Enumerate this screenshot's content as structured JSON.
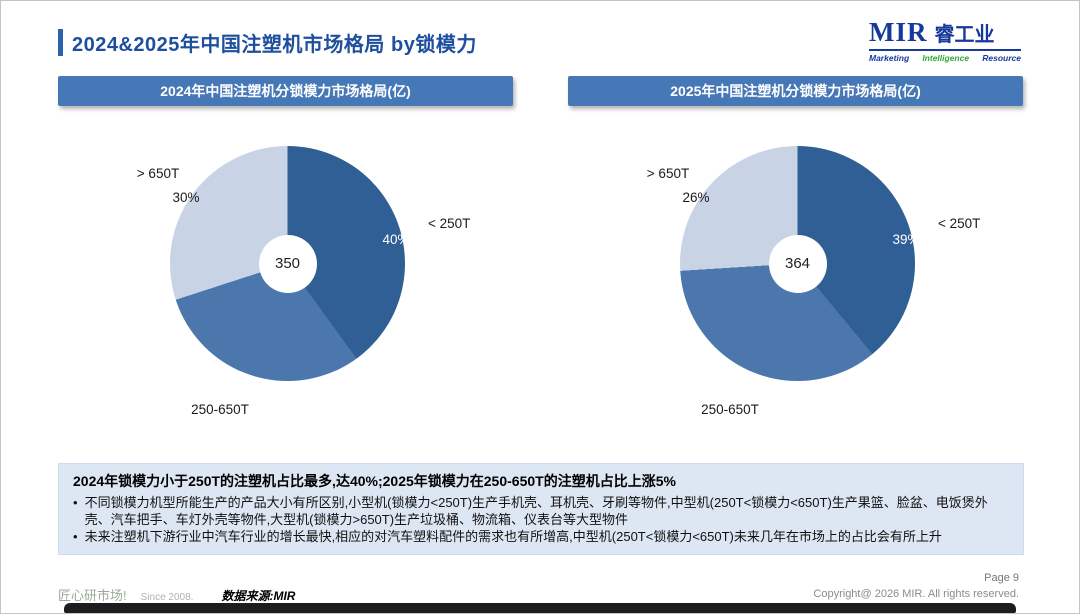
{
  "page": {
    "title": "2024&2025年中国注塑机市场格局 by锁模力",
    "page_number": "Page 9",
    "copyright": "Copyright@ 2026 MIR. All rights reserved.",
    "brand_text": "匠心研市场!",
    "since_text": "Since 2008.",
    "source_text": "数据来源:MIR"
  },
  "logo": {
    "name": "MIR",
    "name_cn": "睿工业",
    "tagline": [
      "Marketing",
      "Intelligence",
      "Resource"
    ]
  },
  "chart_data": [
    {
      "type": "pie",
      "donut": true,
      "title": "2024年中国注塑机分锁模力市场格局(亿)",
      "center_total": "350",
      "legend_position": "outside-labels",
      "slices": [
        {
          "label": "< 250T",
          "value": 40,
          "percent_label": "40%",
          "color": "#2f5f94"
        },
        {
          "label": "250-650T",
          "value": 30,
          "percent_label": "30%",
          "color": "#4b77ad"
        },
        {
          "label": "> 650T",
          "value": 30,
          "percent_label": "30%",
          "color": "#c8d4e6"
        }
      ]
    },
    {
      "type": "pie",
      "donut": true,
      "title": "2025年中国注塑机分锁模力市场格局(亿)",
      "center_total": "364",
      "legend_position": "outside-labels",
      "slices": [
        {
          "label": "< 250T",
          "value": 39,
          "percent_label": "39%",
          "color": "#2f5f94"
        },
        {
          "label": "250-650T",
          "value": 35,
          "percent_label": "35%",
          "color": "#4b77ad"
        },
        {
          "label": "> 650T",
          "value": 26,
          "percent_label": "26%",
          "color": "#c8d4e6"
        }
      ]
    }
  ],
  "summary": {
    "bullet_marker": "•",
    "heading": "2024年锁模力小于250T的注塑机占比最多,达40%;2025年锁模力在250-650T的注塑机占比上涨5%",
    "bullets": [
      "不同锁模力机型所能生产的产品大小有所区别,小型机(锁模力<250T)生产手机壳、耳机壳、牙刷等物件,中型机(250T<锁模力<650T)生产果篮、脸盆、电饭煲外壳、汽车把手、车灯外壳等物件,大型机(锁模力>650T)生产垃圾桶、物流箱、仪表台等大型物件",
      "未来注塑机下游行业中汽车行业的增长最快,相应的对汽车塑料配件的需求也有所增高,中型机(250T<锁模力<650T)未来几年在市场上的占比会有所上升"
    ]
  },
  "colors": {
    "accent_blue": "#2b62ae",
    "header_bar": "#4678b8",
    "summary_bg": "#dde7f3",
    "pie_dark": "#2f5f94",
    "pie_medium": "#4b77ad",
    "pie_light": "#c8d4e6",
    "logo_blue": "#16399a",
    "logo_green": "#2ea836"
  }
}
